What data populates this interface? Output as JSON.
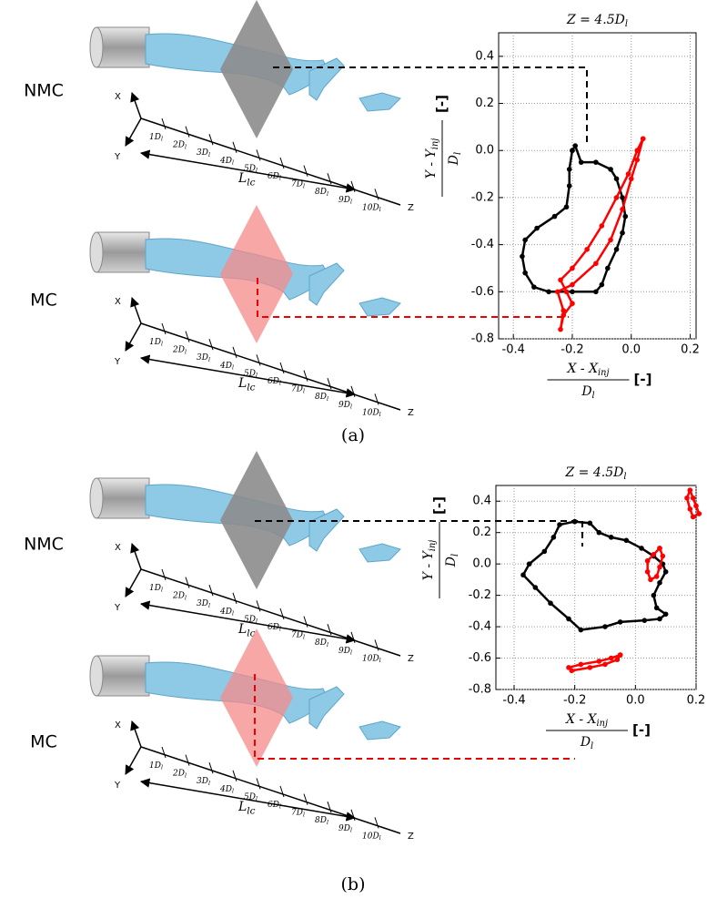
{
  "panels": [
    {
      "caption": "(a)",
      "cases": [
        {
          "label": "NMC"
        },
        {
          "label": "MC"
        }
      ]
    },
    {
      "caption": "(b)",
      "cases": [
        {
          "label": "NMC"
        },
        {
          "label": "MC"
        }
      ]
    }
  ],
  "axes3d": {
    "x": "X",
    "y": "Y",
    "z": "Z",
    "length": {
      "text": "L",
      "sub": "lc"
    },
    "ticks": [
      {
        "text": "1D",
        "sub": "l"
      },
      {
        "text": "2D",
        "sub": "l"
      },
      {
        "text": "3D",
        "sub": "l"
      },
      {
        "text": "4D",
        "sub": "l"
      },
      {
        "text": "5D",
        "sub": "l"
      },
      {
        "text": "6D",
        "sub": "l"
      },
      {
        "text": "7D",
        "sub": "l"
      },
      {
        "text": "8D",
        "sub": "l"
      },
      {
        "text": "9D",
        "sub": "l"
      },
      {
        "text": "10D",
        "sub": "l"
      }
    ]
  },
  "chart_data": [
    {
      "type": "scatter",
      "title": {
        "text": "Z = 4.5D",
        "sub": "l"
      },
      "xlabel": {
        "numerator": "X - X",
        "numerator_sub": "inj",
        "denominator": "D",
        "denominator_sub": "l",
        "unit": "[-]"
      },
      "ylabel": {
        "numerator": "Y - Y",
        "numerator_sub": "inj",
        "denominator": "D",
        "denominator_sub": "l",
        "unit": "[-]"
      },
      "xlim": [
        -0.45,
        0.22
      ],
      "ylim": [
        -0.8,
        0.5
      ],
      "xticks": [
        -0.4,
        -0.2,
        {
          "value": 0,
          "label": "0.0"
        },
        0.2
      ],
      "yticks": [
        -0.8,
        -0.6,
        -0.4,
        -0.2,
        {
          "value": 0,
          "label": "0.0"
        },
        0.2,
        0.4
      ],
      "grid": true,
      "series": [
        {
          "color": "#000000",
          "x": [
            -0.2,
            -0.19,
            -0.17,
            -0.12,
            -0.07,
            -0.05,
            -0.03,
            -0.02,
            -0.03,
            -0.05,
            -0.08,
            -0.1,
            -0.12,
            -0.2,
            -0.28,
            -0.33,
            -0.36,
            -0.37,
            -0.36,
            -0.32,
            -0.26,
            -0.22,
            -0.21,
            -0.21,
            -0.2
          ],
          "y": [
            0.0,
            0.02,
            -0.05,
            -0.05,
            -0.08,
            -0.12,
            -0.2,
            -0.28,
            -0.35,
            -0.42,
            -0.5,
            -0.57,
            -0.6,
            -0.6,
            -0.6,
            -0.58,
            -0.52,
            -0.45,
            -0.38,
            -0.33,
            -0.28,
            -0.24,
            -0.15,
            -0.08,
            0.0
          ]
        },
        {
          "color": "#ff0000",
          "x": [
            0.04,
            0.02,
            -0.01,
            -0.05,
            -0.1,
            -0.15,
            -0.2,
            -0.24,
            -0.22,
            -0.2,
            -0.23,
            -0.24,
            -0.23,
            -0.25,
            -0.2,
            -0.12,
            -0.07,
            -0.03,
            0.0,
            0.02,
            0.04
          ],
          "y": [
            0.05,
            0.0,
            -0.1,
            -0.2,
            -0.32,
            -0.42,
            -0.5,
            -0.55,
            -0.6,
            -0.65,
            -0.7,
            -0.76,
            -0.68,
            -0.6,
            -0.57,
            -0.48,
            -0.38,
            -0.25,
            -0.12,
            -0.04,
            0.05
          ]
        }
      ]
    },
    {
      "type": "scatter",
      "title": {
        "text": "Z = 4.5D",
        "sub": "l"
      },
      "xlabel": {
        "numerator": "X - X",
        "numerator_sub": "inj",
        "denominator": "D",
        "denominator_sub": "l",
        "unit": "[-]"
      },
      "ylabel": {
        "numerator": "Y - Y",
        "numerator_sub": "inj",
        "denominator": "D",
        "denominator_sub": "l",
        "unit": "[-]"
      },
      "xlim": [
        -0.46,
        0.2
      ],
      "ylim": [
        -0.8,
        0.5
      ],
      "xticks": [
        -0.4,
        -0.2,
        {
          "value": 0,
          "label": "0.0"
        },
        0.2
      ],
      "yticks": [
        -0.8,
        -0.6,
        -0.4,
        -0.2,
        {
          "value": 0,
          "label": "0.0"
        },
        0.2,
        0.4
      ],
      "grid": true,
      "series": [
        {
          "color": "#000000",
          "x": [
            -0.2,
            -0.15,
            -0.12,
            -0.08,
            -0.03,
            0.02,
            0.06,
            0.09,
            0.1,
            0.08,
            0.06,
            0.07,
            0.1,
            0.08,
            0.03,
            -0.05,
            -0.1,
            -0.18,
            -0.22,
            -0.28,
            -0.33,
            -0.37,
            -0.35,
            -0.3,
            -0.27,
            -0.25,
            -0.2
          ],
          "y": [
            0.27,
            0.26,
            0.2,
            0.17,
            0.15,
            0.1,
            0.05,
            0.0,
            -0.05,
            -0.12,
            -0.2,
            -0.28,
            -0.32,
            -0.35,
            -0.36,
            -0.37,
            -0.4,
            -0.42,
            -0.35,
            -0.25,
            -0.15,
            -0.07,
            0.0,
            0.08,
            0.17,
            0.25,
            0.27
          ]
        },
        {
          "color": "#ff0000",
          "x": [
            0.18,
            0.19,
            0.2,
            0.21,
            0.19,
            0.18,
            0.17,
            0.18
          ],
          "y": [
            0.47,
            0.42,
            0.37,
            0.32,
            0.3,
            0.35,
            0.42,
            0.47
          ]
        },
        {
          "color": "#ff0000",
          "x": [
            0.08,
            0.09,
            0.08,
            0.07,
            0.05,
            0.04,
            0.04,
            0.06,
            0.08
          ],
          "y": [
            0.1,
            0.05,
            -0.02,
            -0.08,
            -0.1,
            -0.05,
            0.02,
            0.06,
            0.1
          ]
        },
        {
          "color": "#ff0000",
          "x": [
            -0.05,
            -0.08,
            -0.12,
            -0.18,
            -0.22,
            -0.21,
            -0.15,
            -0.1,
            -0.06,
            -0.05
          ],
          "y": [
            -0.58,
            -0.6,
            -0.62,
            -0.64,
            -0.66,
            -0.68,
            -0.66,
            -0.64,
            -0.61,
            -0.58
          ]
        }
      ]
    }
  ]
}
